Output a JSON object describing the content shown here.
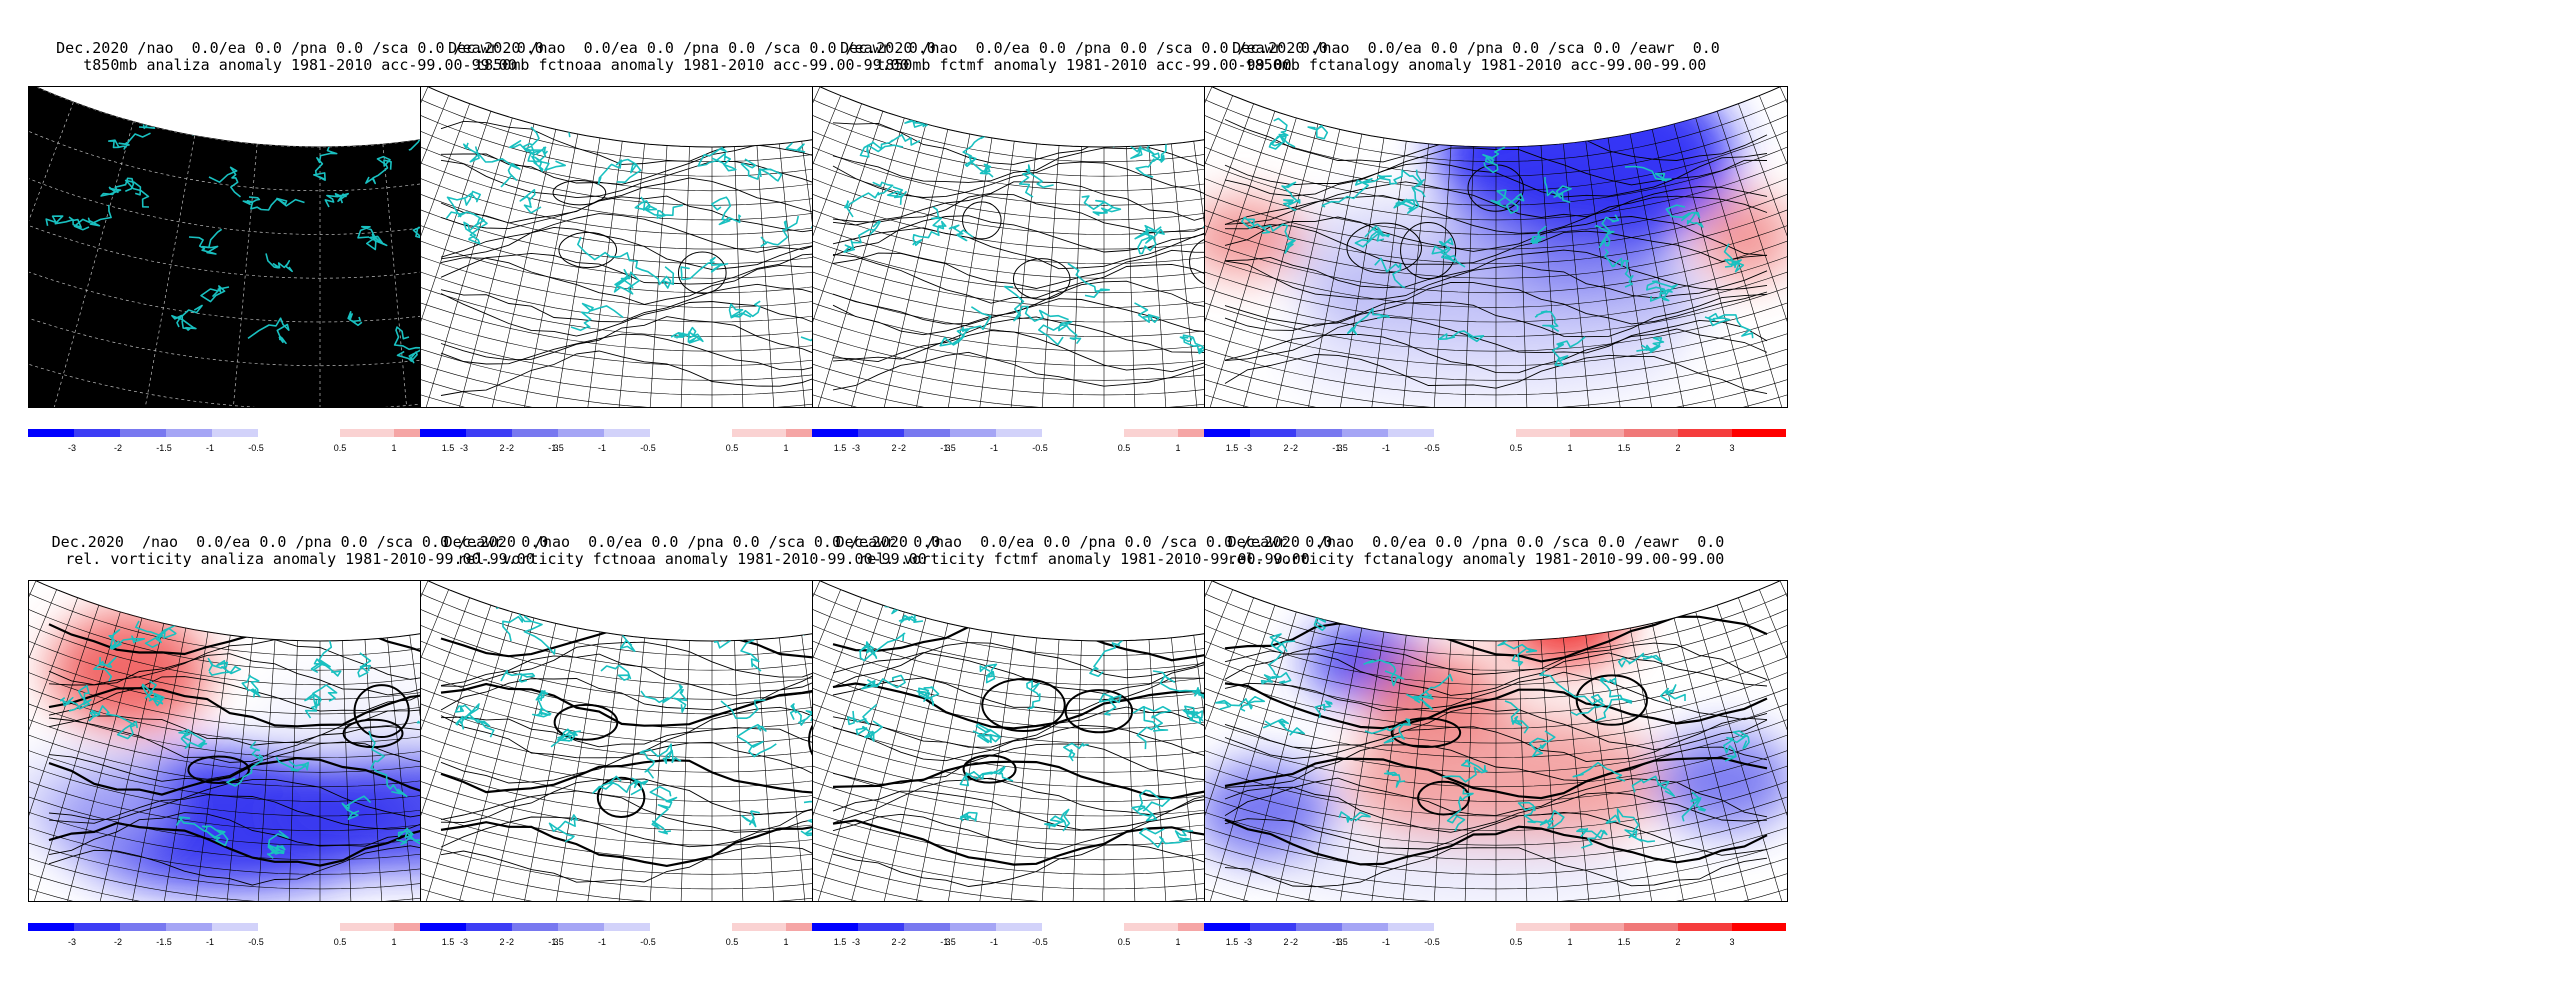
{
  "panels": [
    {
      "id": "p1",
      "row": 0,
      "col": 0,
      "line1": "Dec.2020 /nao  0.0/ea 0.0 /pna 0.0 /sca 0.0 /eawr  0.0",
      "line2": "t850mb analiza anomaly 1981-2010 acc-99.00-99.00",
      "style": "black"
    },
    {
      "id": "p2",
      "row": 0,
      "col": 1,
      "line1": "Dec.2020 /nao  0.0/ea 0.0 /pna 0.0 /sca 0.0 /eawr  0.0",
      "line2": "t850mb fctnoaa anomaly 1981-2010 acc-99.00-99.00",
      "style": "lines"
    },
    {
      "id": "p3",
      "row": 0,
      "col": 2,
      "line1": "Dec.2020 /nao  0.0/ea 0.0 /pna 0.0 /sca 0.0 /eawr  0.0",
      "line2": "t850mb fctmf anomaly 1981-2010 acc-99.00-99.00",
      "style": "lines"
    },
    {
      "id": "p4",
      "row": 0,
      "col": 3,
      "line1": "Dec.2020 /nao  0.0/ea 0.0 /pna 0.0 /sca 0.0 /eawr  0.0",
      "line2": "t850mb fctanalogy anomaly 1981-2010 acc-99.00-99.00",
      "style": "t850analogy"
    },
    {
      "id": "p5",
      "row": 1,
      "col": 0,
      "line1": "Dec.2020  /nao  0.0/ea 0.0 /pna 0.0 /sca 0.0 /eawr  0.0",
      "line2": "rel. vorticity analiza anomaly 1981-2010-99.00-99.00",
      "style": "vortanaliza"
    },
    {
      "id": "p6",
      "row": 1,
      "col": 1,
      "line1": "Dec.2020  /nao  0.0/ea 0.0 /pna 0.0 /sca 0.0 /eawr  0.0",
      "line2": "rel. vorticity fctnoaa anomaly 1981-2010-99.00-99.00",
      "style": "lines2"
    },
    {
      "id": "p7",
      "row": 1,
      "col": 2,
      "line1": "Dec.2020  /nao  0.0/ea 0.0 /pna 0.0 /sca 0.0 /eawr  0.0",
      "line2": "rel. vorticity fctmf anomaly 1981-2010-99.00-99.00",
      "style": "lines2"
    },
    {
      "id": "p8",
      "row": 1,
      "col": 3,
      "line1": "Dec.2020  /nao  0.0/ea 0.0 /pna 0.0 /sca 0.0 /eawr  0.0",
      "line2": "rel. vorticity fctanalogy anomaly 1981-2010-99.00-99.00",
      "style": "vortanalogy"
    }
  ],
  "colorbar": {
    "neg_labels": [
      "-3",
      "-2",
      "-1.5",
      "-1",
      "-0.5"
    ],
    "pos_labels": [
      "0.5",
      "1",
      "1.5",
      "2",
      "3"
    ],
    "neg_colors": [
      "#0000ff",
      "#3c3cf5",
      "#7878f0",
      "#a5a5f5",
      "#d2d2fa"
    ],
    "pos_colors": [
      "#fad2d2",
      "#f5a5a5",
      "#f07878",
      "#f53c3c",
      "#ff0000"
    ]
  },
  "colors": {
    "coastline": "#19c0c0",
    "background_dark": "#000000",
    "contour": "#000000"
  }
}
